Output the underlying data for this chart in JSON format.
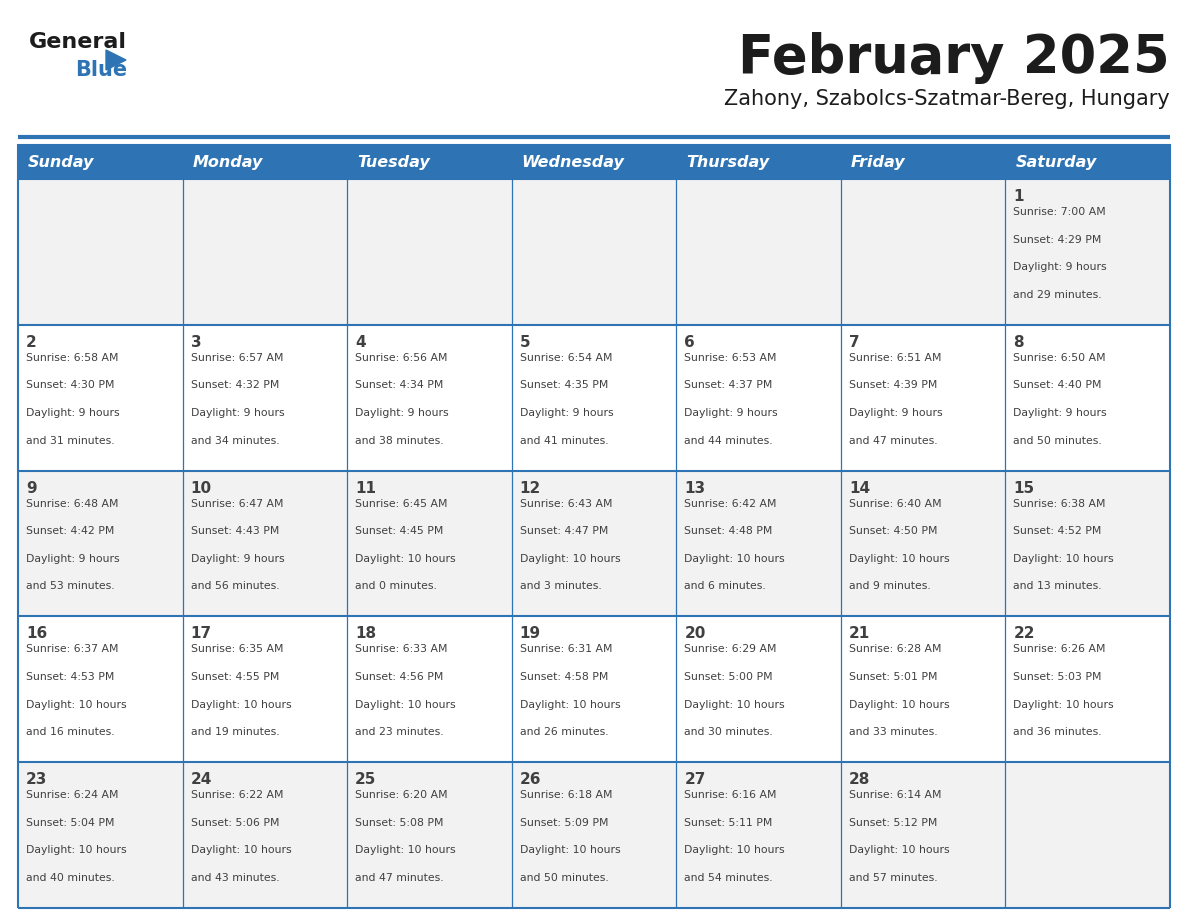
{
  "title": "February 2025",
  "subtitle": "Zahony, Szabolcs-Szatmar-Bereg, Hungary",
  "header_bg_color": "#2E74B5",
  "header_text_color": "#FFFFFF",
  "cell_bg_color_even": "#F2F2F2",
  "cell_bg_color_odd": "#FFFFFF",
  "border_color": "#2E74B5",
  "text_color": "#404040",
  "day_number_color": "#2E74B5",
  "day_headers": [
    "Sunday",
    "Monday",
    "Tuesday",
    "Wednesday",
    "Thursday",
    "Friday",
    "Saturday"
  ],
  "calendar_data": [
    [
      null,
      null,
      null,
      null,
      null,
      null,
      {
        "day": 1,
        "sunrise": "7:00 AM",
        "sunset": "4:29 PM",
        "daylight": "9 hours and 29 minutes."
      }
    ],
    [
      {
        "day": 2,
        "sunrise": "6:58 AM",
        "sunset": "4:30 PM",
        "daylight": "9 hours and 31 minutes."
      },
      {
        "day": 3,
        "sunrise": "6:57 AM",
        "sunset": "4:32 PM",
        "daylight": "9 hours and 34 minutes."
      },
      {
        "day": 4,
        "sunrise": "6:56 AM",
        "sunset": "4:34 PM",
        "daylight": "9 hours and 38 minutes."
      },
      {
        "day": 5,
        "sunrise": "6:54 AM",
        "sunset": "4:35 PM",
        "daylight": "9 hours and 41 minutes."
      },
      {
        "day": 6,
        "sunrise": "6:53 AM",
        "sunset": "4:37 PM",
        "daylight": "9 hours and 44 minutes."
      },
      {
        "day": 7,
        "sunrise": "6:51 AM",
        "sunset": "4:39 PM",
        "daylight": "9 hours and 47 minutes."
      },
      {
        "day": 8,
        "sunrise": "6:50 AM",
        "sunset": "4:40 PM",
        "daylight": "9 hours and 50 minutes."
      }
    ],
    [
      {
        "day": 9,
        "sunrise": "6:48 AM",
        "sunset": "4:42 PM",
        "daylight": "9 hours and 53 minutes."
      },
      {
        "day": 10,
        "sunrise": "6:47 AM",
        "sunset": "4:43 PM",
        "daylight": "9 hours and 56 minutes."
      },
      {
        "day": 11,
        "sunrise": "6:45 AM",
        "sunset": "4:45 PM",
        "daylight": "10 hours and 0 minutes."
      },
      {
        "day": 12,
        "sunrise": "6:43 AM",
        "sunset": "4:47 PM",
        "daylight": "10 hours and 3 minutes."
      },
      {
        "day": 13,
        "sunrise": "6:42 AM",
        "sunset": "4:48 PM",
        "daylight": "10 hours and 6 minutes."
      },
      {
        "day": 14,
        "sunrise": "6:40 AM",
        "sunset": "4:50 PM",
        "daylight": "10 hours and 9 minutes."
      },
      {
        "day": 15,
        "sunrise": "6:38 AM",
        "sunset": "4:52 PM",
        "daylight": "10 hours and 13 minutes."
      }
    ],
    [
      {
        "day": 16,
        "sunrise": "6:37 AM",
        "sunset": "4:53 PM",
        "daylight": "10 hours and 16 minutes."
      },
      {
        "day": 17,
        "sunrise": "6:35 AM",
        "sunset": "4:55 PM",
        "daylight": "10 hours and 19 minutes."
      },
      {
        "day": 18,
        "sunrise": "6:33 AM",
        "sunset": "4:56 PM",
        "daylight": "10 hours and 23 minutes."
      },
      {
        "day": 19,
        "sunrise": "6:31 AM",
        "sunset": "4:58 PM",
        "daylight": "10 hours and 26 minutes."
      },
      {
        "day": 20,
        "sunrise": "6:29 AM",
        "sunset": "5:00 PM",
        "daylight": "10 hours and 30 minutes."
      },
      {
        "day": 21,
        "sunrise": "6:28 AM",
        "sunset": "5:01 PM",
        "daylight": "10 hours and 33 minutes."
      },
      {
        "day": 22,
        "sunrise": "6:26 AM",
        "sunset": "5:03 PM",
        "daylight": "10 hours and 36 minutes."
      }
    ],
    [
      {
        "day": 23,
        "sunrise": "6:24 AM",
        "sunset": "5:04 PM",
        "daylight": "10 hours and 40 minutes."
      },
      {
        "day": 24,
        "sunrise": "6:22 AM",
        "sunset": "5:06 PM",
        "daylight": "10 hours and 43 minutes."
      },
      {
        "day": 25,
        "sunrise": "6:20 AM",
        "sunset": "5:08 PM",
        "daylight": "10 hours and 47 minutes."
      },
      {
        "day": 26,
        "sunrise": "6:18 AM",
        "sunset": "5:09 PM",
        "daylight": "10 hours and 50 minutes."
      },
      {
        "day": 27,
        "sunrise": "6:16 AM",
        "sunset": "5:11 PM",
        "daylight": "10 hours and 54 minutes."
      },
      {
        "day": 28,
        "sunrise": "6:14 AM",
        "sunset": "5:12 PM",
        "daylight": "10 hours and 57 minutes."
      },
      null
    ]
  ]
}
